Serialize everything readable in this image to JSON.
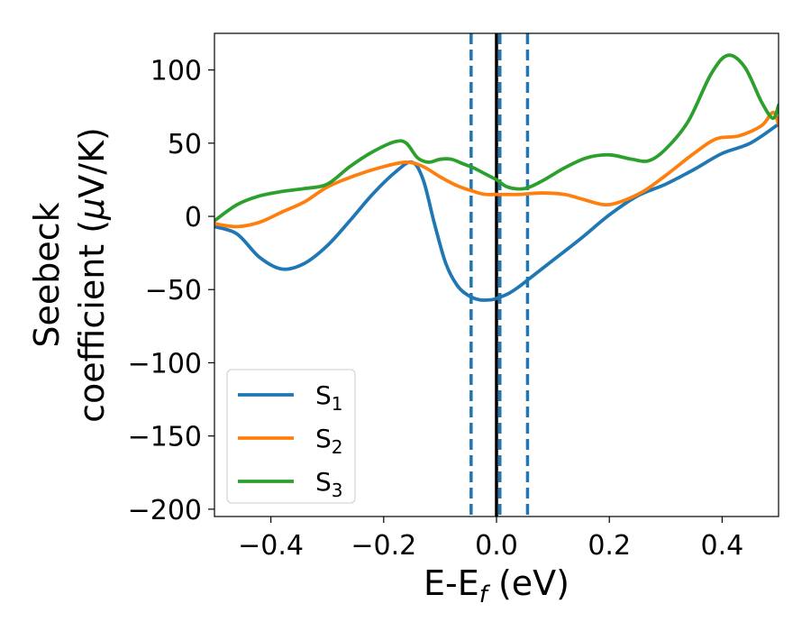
{
  "chart_data": {
    "type": "line",
    "xlabel": {
      "main": "E-E",
      "sub": "f",
      "unit": " (eV)"
    },
    "ylabel": {
      "line1": "Seebeck",
      "line2": "coefficient  (",
      "mu": "μ",
      "unit": "V/K)"
    },
    "xlim": [
      -0.5,
      0.5
    ],
    "ylim": [
      -205,
      125
    ],
    "xticks": [
      -0.4,
      -0.2,
      0.0,
      0.2,
      0.4
    ],
    "xtick_labels": [
      "−0.4",
      "−0.2",
      "0.0",
      "0.2",
      "0.4"
    ],
    "yticks": [
      100,
      50,
      0,
      -50,
      -100,
      -150,
      -200
    ],
    "ytick_labels": [
      "100",
      "50",
      "0",
      "−50",
      "−100",
      "−150",
      "−200"
    ],
    "grid": false,
    "legend_position": "lower-left",
    "vlines": [
      {
        "x": -0.045,
        "style": "dashed",
        "color": "#1f77b4"
      },
      {
        "x": 0.0,
        "style": "solid",
        "color": "#000000"
      },
      {
        "x": 0.006,
        "style": "dashed",
        "color": "#1f77b4"
      },
      {
        "x": 0.055,
        "style": "dashed",
        "color": "#1f77b4"
      }
    ],
    "series": [
      {
        "name": "S",
        "sub": "1",
        "color": "#1f77b4",
        "x": [
          -0.5,
          -0.46,
          -0.42,
          -0.38,
          -0.34,
          -0.3,
          -0.26,
          -0.22,
          -0.18,
          -0.15,
          -0.13,
          -0.11,
          -0.09,
          -0.07,
          -0.05,
          -0.03,
          -0.01,
          0.0,
          0.02,
          0.04,
          0.06,
          0.1,
          0.15,
          0.2,
          0.25,
          0.3,
          0.35,
          0.4,
          0.45,
          0.5
        ],
        "y": [
          -7,
          -12,
          -28,
          -36,
          -32,
          -20,
          -3,
          15,
          30,
          37,
          25,
          -5,
          -32,
          -47,
          -54,
          -57,
          -57,
          -56,
          -53,
          -48,
          -42,
          -30,
          -15,
          1,
          14,
          22,
          32,
          43,
          50,
          63
        ]
      },
      {
        "name": "S",
        "sub": "2",
        "color": "#ff7f0e",
        "x": [
          -0.5,
          -0.46,
          -0.42,
          -0.38,
          -0.34,
          -0.3,
          -0.25,
          -0.2,
          -0.16,
          -0.13,
          -0.1,
          -0.07,
          -0.04,
          -0.02,
          0.0,
          0.04,
          0.08,
          0.12,
          0.15,
          0.19,
          0.22,
          0.26,
          0.3,
          0.35,
          0.39,
          0.43,
          0.47,
          0.49,
          0.5
        ],
        "y": [
          -5,
          -7,
          -4,
          3,
          10,
          20,
          28,
          34,
          37,
          34,
          27,
          21,
          17,
          15,
          15,
          15,
          16,
          15,
          12,
          8,
          10,
          17,
          28,
          43,
          53,
          55,
          62,
          71,
          63
        ]
      },
      {
        "name": "S",
        "sub": "3",
        "color": "#2ca02c",
        "x": [
          -0.5,
          -0.46,
          -0.42,
          -0.38,
          -0.34,
          -0.3,
          -0.26,
          -0.22,
          -0.18,
          -0.16,
          -0.14,
          -0.12,
          -0.1,
          -0.08,
          -0.06,
          -0.04,
          -0.02,
          0.0,
          0.02,
          0.05,
          0.08,
          0.12,
          0.16,
          0.2,
          0.24,
          0.27,
          0.3,
          0.34,
          0.38,
          0.41,
          0.44,
          0.47,
          0.49,
          0.5
        ],
        "y": [
          -3,
          8,
          14,
          17,
          19,
          22,
          34,
          44,
          51,
          50,
          40,
          37,
          39,
          39,
          36,
          33,
          29,
          25,
          20,
          19,
          24,
          33,
          40,
          42,
          39,
          38,
          46,
          65,
          97,
          110,
          102,
          78,
          67,
          76
        ]
      }
    ]
  }
}
